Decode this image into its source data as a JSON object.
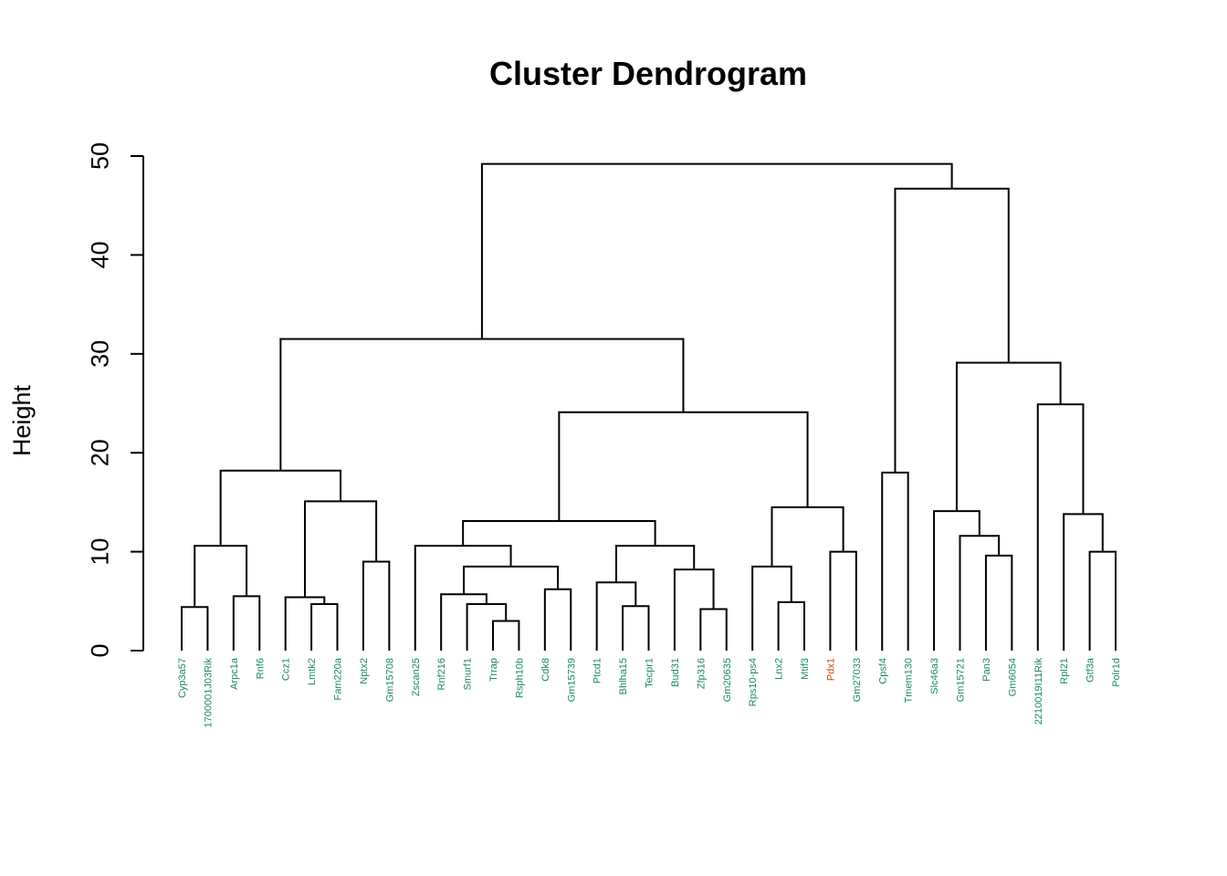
{
  "chart_data": {
    "type": "dendrogram",
    "title": "Cluster Dendrogram",
    "ylabel": "Height",
    "ylim": [
      0,
      50
    ],
    "yticks": [
      0,
      10,
      20,
      30,
      40,
      50
    ],
    "colors": {
      "default_label": "#1a8a5e",
      "highlight_label": "#cc4411",
      "branch": "#000000"
    },
    "leaves": [
      {
        "label": "Cyp3a57",
        "h": 0,
        "highlight": false
      },
      {
        "label": "1700001J03Rik",
        "h": 0,
        "highlight": false
      },
      {
        "label": "Arpc1a",
        "h": 0,
        "highlight": false
      },
      {
        "label": "Rnf6",
        "h": 0,
        "highlight": false
      },
      {
        "label": "Ccz1",
        "h": 0,
        "highlight": false
      },
      {
        "label": "Lmtk2",
        "h": 0,
        "highlight": false
      },
      {
        "label": "Fam220a",
        "h": 0,
        "highlight": false
      },
      {
        "label": "Nptx2",
        "h": 0,
        "highlight": false
      },
      {
        "label": "Gm15708",
        "h": 0,
        "highlight": false
      },
      {
        "label": "Zscan25",
        "h": 0,
        "highlight": false
      },
      {
        "label": "Rnf216",
        "h": 0,
        "highlight": false
      },
      {
        "label": "Smurf1",
        "h": 0,
        "highlight": false
      },
      {
        "label": "Trrap",
        "h": 0,
        "highlight": false
      },
      {
        "label": "Rsph10b",
        "h": 0,
        "highlight": false
      },
      {
        "label": "Cdk8",
        "h": 0,
        "highlight": false
      },
      {
        "label": "Gm15739",
        "h": 0,
        "highlight": false
      },
      {
        "label": "Ptcd1",
        "h": 0,
        "highlight": false
      },
      {
        "label": "Bhlha15",
        "h": 0,
        "highlight": false
      },
      {
        "label": "Tecpr1",
        "h": 0,
        "highlight": false
      },
      {
        "label": "Bud31",
        "h": 0,
        "highlight": false
      },
      {
        "label": "Zfp316",
        "h": 0,
        "highlight": false
      },
      {
        "label": "Gm20635",
        "h": 0,
        "highlight": false
      },
      {
        "label": "Rps10-ps4",
        "h": 0,
        "highlight": false
      },
      {
        "label": "Lnx2",
        "h": 0,
        "highlight": false
      },
      {
        "label": "Mtif3",
        "h": 0,
        "highlight": false
      },
      {
        "label": "Pdx1",
        "h": 0,
        "highlight": true
      },
      {
        "label": "Gm27033",
        "h": 0,
        "highlight": false
      },
      {
        "label": "Cpsf4",
        "h": 0,
        "highlight": false
      },
      {
        "label": "Tmem130",
        "h": 0,
        "highlight": false
      },
      {
        "label": "Slc46a3",
        "h": 0,
        "highlight": false
      },
      {
        "label": "Gm15721",
        "h": 0,
        "highlight": false
      },
      {
        "label": "Pan3",
        "h": 0,
        "highlight": false
      },
      {
        "label": "Gm6054",
        "h": 0,
        "highlight": false
      },
      {
        "label": "2210019I11Rik",
        "h": 0,
        "highlight": false
      },
      {
        "label": "Rpl21",
        "h": 0,
        "highlight": false
      },
      {
        "label": "Gtf3a",
        "h": 0,
        "highlight": false
      },
      {
        "label": "Polr1d",
        "h": 0,
        "highlight": false
      }
    ],
    "merges": [
      {
        "a": [
          "L",
          0
        ],
        "b": [
          "L",
          1
        ],
        "height": 4.4
      },
      {
        "a": [
          "L",
          2
        ],
        "b": [
          "L",
          3
        ],
        "height": 5.5
      },
      {
        "a": [
          "M",
          0
        ],
        "b": [
          "M",
          1
        ],
        "height": 10.6
      },
      {
        "a": [
          "L",
          5
        ],
        "b": [
          "L",
          6
        ],
        "height": 4.7
      },
      {
        "a": [
          "L",
          4
        ],
        "b": [
          "M",
          3
        ],
        "height": 5.4
      },
      {
        "a": [
          "L",
          7
        ],
        "b": [
          "L",
          8
        ],
        "height": 9.0
      },
      {
        "a": [
          "M",
          4
        ],
        "b": [
          "M",
          5
        ],
        "height": 15.1
      },
      {
        "a": [
          "M",
          2
        ],
        "b": [
          "M",
          6
        ],
        "height": 18.2
      },
      {
        "a": [
          "L",
          12
        ],
        "b": [
          "L",
          13
        ],
        "height": 3.0
      },
      {
        "a": [
          "L",
          11
        ],
        "b": [
          "M",
          8
        ],
        "height": 4.7
      },
      {
        "a": [
          "L",
          10
        ],
        "b": [
          "M",
          9
        ],
        "height": 5.7
      },
      {
        "a": [
          "L",
          14
        ],
        "b": [
          "L",
          15
        ],
        "height": 6.2
      },
      {
        "a": [
          "M",
          10
        ],
        "b": [
          "M",
          11
        ],
        "height": 8.5
      },
      {
        "a": [
          "L",
          9
        ],
        "b": [
          "M",
          12
        ],
        "height": 10.6
      },
      {
        "a": [
          "L",
          17
        ],
        "b": [
          "L",
          18
        ],
        "height": 4.5
      },
      {
        "a": [
          "L",
          16
        ],
        "b": [
          "M",
          14
        ],
        "height": 6.9
      },
      {
        "a": [
          "L",
          20
        ],
        "b": [
          "L",
          21
        ],
        "height": 4.2
      },
      {
        "a": [
          "L",
          19
        ],
        "b": [
          "M",
          16
        ],
        "height": 8.2
      },
      {
        "a": [
          "M",
          15
        ],
        "b": [
          "M",
          17
        ],
        "height": 10.6
      },
      {
        "a": [
          "M",
          13
        ],
        "b": [
          "M",
          18
        ],
        "height": 13.1
      },
      {
        "a": [
          "L",
          23
        ],
        "b": [
          "L",
          24
        ],
        "height": 4.9
      },
      {
        "a": [
          "L",
          22
        ],
        "b": [
          "M",
          20
        ],
        "height": 8.5
      },
      {
        "a": [
          "L",
          25
        ],
        "b": [
          "L",
          26
        ],
        "height": 10.0
      },
      {
        "a": [
          "M",
          21
        ],
        "b": [
          "M",
          22
        ],
        "height": 14.5
      },
      {
        "a": [
          "M",
          19
        ],
        "b": [
          "M",
          23
        ],
        "height": 24.1
      },
      {
        "a": [
          "M",
          7
        ],
        "b": [
          "M",
          24
        ],
        "height": 31.5
      },
      {
        "a": [
          "L",
          27
        ],
        "b": [
          "L",
          28
        ],
        "height": 18.0
      },
      {
        "a": [
          "L",
          31
        ],
        "b": [
          "L",
          32
        ],
        "height": 9.6
      },
      {
        "a": [
          "L",
          30
        ],
        "b": [
          "M",
          27
        ],
        "height": 11.6
      },
      {
        "a": [
          "L",
          29
        ],
        "b": [
          "M",
          28
        ],
        "height": 14.1
      },
      {
        "a": [
          "L",
          35
        ],
        "b": [
          "L",
          36
        ],
        "height": 10.0
      },
      {
        "a": [
          "L",
          34
        ],
        "b": [
          "M",
          30
        ],
        "height": 13.8
      },
      {
        "a": [
          "L",
          33
        ],
        "b": [
          "M",
          31
        ],
        "height": 24.9
      },
      {
        "a": [
          "M",
          29
        ],
        "b": [
          "M",
          32
        ],
        "height": 29.1
      },
      {
        "a": [
          "M",
          26
        ],
        "b": [
          "M",
          33
        ],
        "height": 46.7
      },
      {
        "a": [
          "M",
          25
        ],
        "b": [
          "M",
          34
        ],
        "height": 49.2
      }
    ]
  }
}
